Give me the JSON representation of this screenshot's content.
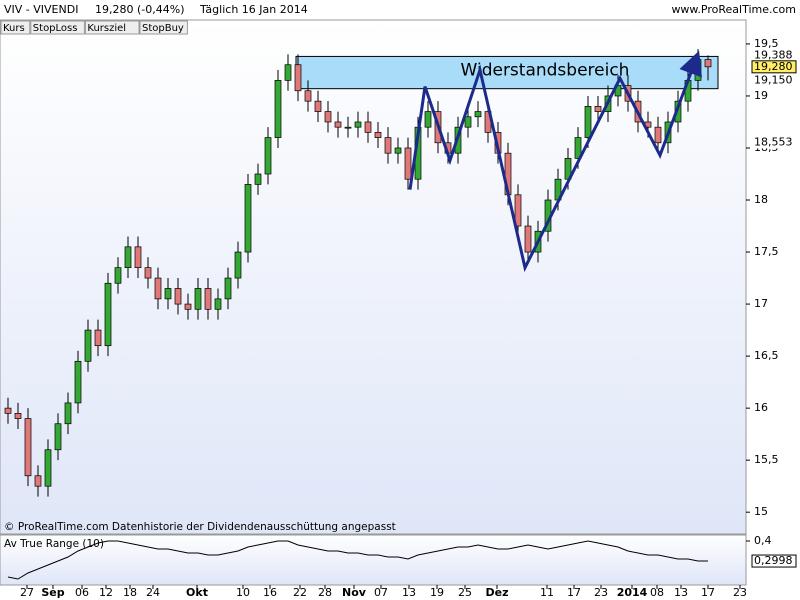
{
  "chart_data": {
    "type": "candlestick",
    "title": "VIV - VIVENDI",
    "quote": "19,280 (-0,44%)",
    "period": "Täglich  16 Jan 2014",
    "source": "www.ProRealTime.com",
    "buttons": [
      "Kurs",
      "StopLoss",
      "Kursziel",
      "StopBuy"
    ],
    "footer": "© ProRealTime.com  Datenhistorie der Dividendenausschüttung angepasst",
    "xtick_labels": [
      "27",
      "Sep",
      "06",
      "12",
      "18",
      "24",
      "Okt",
      "10",
      "16",
      "22",
      "28",
      "Nov",
      "07",
      "13",
      "19",
      "25",
      "Dez",
      "11",
      "17",
      "23",
      "2014",
      "08",
      "13",
      "17",
      "23"
    ],
    "ylim": [
      14.8,
      19.73
    ],
    "yticks": [
      15,
      {
        "value": 15.5,
        "label": "15,5"
      },
      16,
      {
        "value": 16.5,
        "label": "16,5"
      },
      17,
      {
        "value": 17.5,
        "label": "17,5"
      },
      18,
      {
        "value": 18.5,
        "label": "18,5"
      },
      19,
      {
        "value": 19.5,
        "label": "19,5"
      }
    ],
    "price_labels": [
      {
        "value": 19.388,
        "label": "19,388",
        "color": "#d62020"
      },
      {
        "value": 19.28,
        "label": "19,280",
        "color": "#000000"
      },
      {
        "value": 19.15,
        "label": "19,150",
        "color": "#000000"
      },
      {
        "value": 18.553,
        "label": "18,553",
        "color": "#1a8a1a"
      }
    ],
    "up_color": "#33a833",
    "down_color": "#e07878",
    "open": [
      16.0,
      15.95,
      15.9,
      15.35,
      15.25,
      15.6,
      15.85,
      16.05,
      16.45,
      16.75,
      16.6,
      17.2,
      17.35,
      17.55,
      17.35,
      17.25,
      17.05,
      17.15,
      17.0,
      16.95,
      17.15,
      16.95,
      17.05,
      17.25,
      17.5,
      18.15,
      18.25,
      18.6,
      19.15,
      19.3,
      19.05,
      18.95,
      18.85,
      18.75,
      18.7,
      18.7,
      18.75,
      18.65,
      18.6,
      18.45,
      18.5,
      18.2,
      18.7,
      18.85,
      18.55,
      18.45,
      18.7,
      18.8,
      18.85,
      18.65,
      18.45,
      18.05,
      17.75,
      17.5,
      17.7,
      18.0,
      18.2,
      18.4,
      18.6,
      18.9,
      18.85,
      19.0,
      19.1,
      18.95,
      18.75,
      18.7,
      18.55,
      18.75,
      18.95,
      19.15,
      19.35
    ],
    "high": [
      16.1,
      16.05,
      16.0,
      15.45,
      15.7,
      15.95,
      16.15,
      16.55,
      16.85,
      16.85,
      17.3,
      17.45,
      17.65,
      17.65,
      17.45,
      17.35,
      17.25,
      17.25,
      17.1,
      17.25,
      17.25,
      17.15,
      17.35,
      17.6,
      18.25,
      18.35,
      18.7,
      19.25,
      19.4,
      19.4,
      19.15,
      19.05,
      18.95,
      18.85,
      18.8,
      18.85,
      18.85,
      18.75,
      18.7,
      18.6,
      18.6,
      18.8,
      18.95,
      18.95,
      18.65,
      18.8,
      18.9,
      18.95,
      18.95,
      18.75,
      18.55,
      18.15,
      17.85,
      17.8,
      18.1,
      18.3,
      18.5,
      18.7,
      19.0,
      19.0,
      19.1,
      19.2,
      19.2,
      19.05,
      18.85,
      18.8,
      18.85,
      19.05,
      19.25,
      19.45,
      19.39
    ],
    "low": [
      15.85,
      15.8,
      15.25,
      15.15,
      15.15,
      15.5,
      15.75,
      15.95,
      16.35,
      16.5,
      16.5,
      17.1,
      17.25,
      17.25,
      17.15,
      16.95,
      16.95,
      16.9,
      16.85,
      16.85,
      16.85,
      16.85,
      16.95,
      17.15,
      17.4,
      18.05,
      18.15,
      18.5,
      19.05,
      18.95,
      18.85,
      18.75,
      18.65,
      18.6,
      18.6,
      18.6,
      18.55,
      18.5,
      18.35,
      18.35,
      18.1,
      18.1,
      18.6,
      18.45,
      18.35,
      18.35,
      18.6,
      18.7,
      18.55,
      18.35,
      17.95,
      17.65,
      17.4,
      17.4,
      17.6,
      17.9,
      18.1,
      18.3,
      18.5,
      18.75,
      18.75,
      18.9,
      18.85,
      18.65,
      18.6,
      18.45,
      18.45,
      18.65,
      18.85,
      19.05,
      19.15
    ],
    "close": [
      15.95,
      15.9,
      15.35,
      15.25,
      15.6,
      15.85,
      16.05,
      16.45,
      16.75,
      16.6,
      17.2,
      17.35,
      17.55,
      17.35,
      17.25,
      17.05,
      17.15,
      17.0,
      16.95,
      17.15,
      16.95,
      17.05,
      17.25,
      17.5,
      18.15,
      18.25,
      18.6,
      19.15,
      19.3,
      19.05,
      18.95,
      18.85,
      18.75,
      18.7,
      18.7,
      18.75,
      18.65,
      18.6,
      18.45,
      18.5,
      18.2,
      18.7,
      18.85,
      18.55,
      18.45,
      18.7,
      18.8,
      18.85,
      18.65,
      18.45,
      18.05,
      17.75,
      17.5,
      17.7,
      18.0,
      18.2,
      18.4,
      18.6,
      18.9,
      18.85,
      19.0,
      19.1,
      18.95,
      18.75,
      18.7,
      18.55,
      18.75,
      18.95,
      19.15,
      19.35,
      19.28
    ],
    "zone": {
      "label": "Widerstandsbereich",
      "range": [
        19.07,
        19.38
      ],
      "color": "#a8dcf8"
    },
    "zigzag": {
      "color": "#1c2a8c",
      "x": [
        40.2,
        41.7,
        44.2,
        47.2,
        51.7,
        61.2,
        65.2,
        68.9
      ],
      "values": [
        18.1,
        19.09,
        18.38,
        19.25,
        17.35,
        19.17,
        18.43,
        19.38
      ]
    },
    "atr": {
      "name": "Av True Range (10)",
      "ylim": [
        0.18,
        0.43
      ],
      "yticks": [
        {
          "value": 0.4,
          "label": "0,4"
        }
      ],
      "last": {
        "value": 0.2998,
        "label": "0,2998"
      },
      "values": [
        0.22,
        0.21,
        0.24,
        0.26,
        0.28,
        0.3,
        0.32,
        0.35,
        0.37,
        0.39,
        0.4,
        0.4,
        0.39,
        0.38,
        0.37,
        0.36,
        0.36,
        0.35,
        0.34,
        0.34,
        0.33,
        0.33,
        0.34,
        0.35,
        0.37,
        0.38,
        0.39,
        0.4,
        0.4,
        0.38,
        0.37,
        0.36,
        0.35,
        0.35,
        0.34,
        0.34,
        0.33,
        0.33,
        0.32,
        0.32,
        0.31,
        0.33,
        0.34,
        0.35,
        0.36,
        0.37,
        0.37,
        0.38,
        0.37,
        0.36,
        0.36,
        0.37,
        0.38,
        0.37,
        0.36,
        0.37,
        0.38,
        0.39,
        0.4,
        0.39,
        0.38,
        0.37,
        0.35,
        0.34,
        0.33,
        0.33,
        0.32,
        0.31,
        0.31,
        0.3,
        0.2998
      ]
    }
  }
}
